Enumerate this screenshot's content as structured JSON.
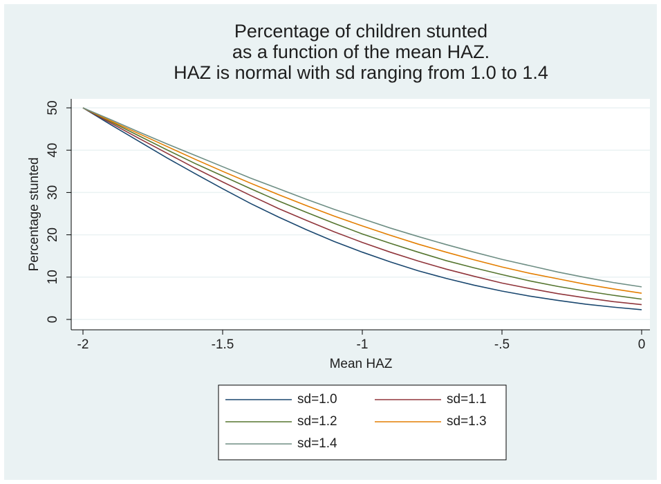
{
  "chart_data": {
    "type": "line",
    "title": [
      "Percentage of children stunted",
      "as a function of the mean HAZ.",
      "HAZ is normal with sd ranging from 1.0 to 1.4"
    ],
    "x_label": "Mean HAZ",
    "y_label": "Percentage stunted",
    "x": [
      -2,
      -1.9,
      -1.8,
      -1.7,
      -1.6,
      -1.5,
      -1.4,
      -1.3,
      -1.2,
      -1.1,
      -1,
      -0.9,
      -0.8,
      -0.7,
      -0.6,
      -0.5,
      -0.4,
      -0.3,
      -0.2,
      -0.1,
      0
    ],
    "series": [
      {
        "name": "sd=1.0",
        "color": "#1a476f",
        "values": [
          50,
          46.0,
          42.1,
          38.2,
          34.5,
          30.9,
          27.4,
          24.2,
          21.2,
          18.4,
          15.9,
          13.6,
          11.5,
          9.7,
          8.1,
          6.7,
          5.5,
          4.5,
          3.6,
          2.9,
          2.3
        ]
      },
      {
        "name": "sd=1.1",
        "color": "#90353b",
        "values": [
          50,
          46.4,
          42.8,
          39.3,
          35.8,
          32.5,
          29.3,
          26.2,
          23.4,
          20.7,
          18.2,
          15.9,
          13.8,
          11.9,
          10.2,
          8.6,
          7.3,
          6.1,
          5.1,
          4.2,
          3.5
        ]
      },
      {
        "name": "sd=1.2",
        "color": "#55752f",
        "values": [
          50,
          46.7,
          43.4,
          40.1,
          36.9,
          33.9,
          30.9,
          28.0,
          25.3,
          22.7,
          20.2,
          18.0,
          15.9,
          13.9,
          12.2,
          10.6,
          9.1,
          7.8,
          6.7,
          5.7,
          4.8
        ]
      },
      {
        "name": "sd=1.3",
        "color": "#e37e00",
        "values": [
          50,
          46.9,
          43.9,
          40.9,
          37.9,
          35.0,
          32.2,
          29.5,
          26.9,
          24.4,
          22.1,
          19.9,
          17.8,
          15.9,
          14.1,
          12.4,
          10.9,
          9.6,
          8.3,
          7.2,
          6.2
        ]
      },
      {
        "name": "sd=1.4",
        "color": "#6e8e84",
        "values": [
          50,
          47.2,
          44.3,
          41.5,
          38.8,
          36.1,
          33.4,
          30.9,
          28.4,
          26.0,
          23.8,
          21.6,
          19.6,
          17.7,
          15.9,
          14.2,
          12.7,
          11.2,
          9.9,
          8.7,
          7.7
        ]
      }
    ],
    "xlim": [
      -2,
      0
    ],
    "ylim": [
      0,
      50
    ],
    "xticks": [
      -2,
      -1.5,
      -1,
      {
        "value": -0.5,
        "label": "-.5"
      },
      0
    ],
    "yticks": [
      0,
      10,
      20,
      30,
      40,
      50
    ],
    "grid": true,
    "legend": "bottom"
  }
}
